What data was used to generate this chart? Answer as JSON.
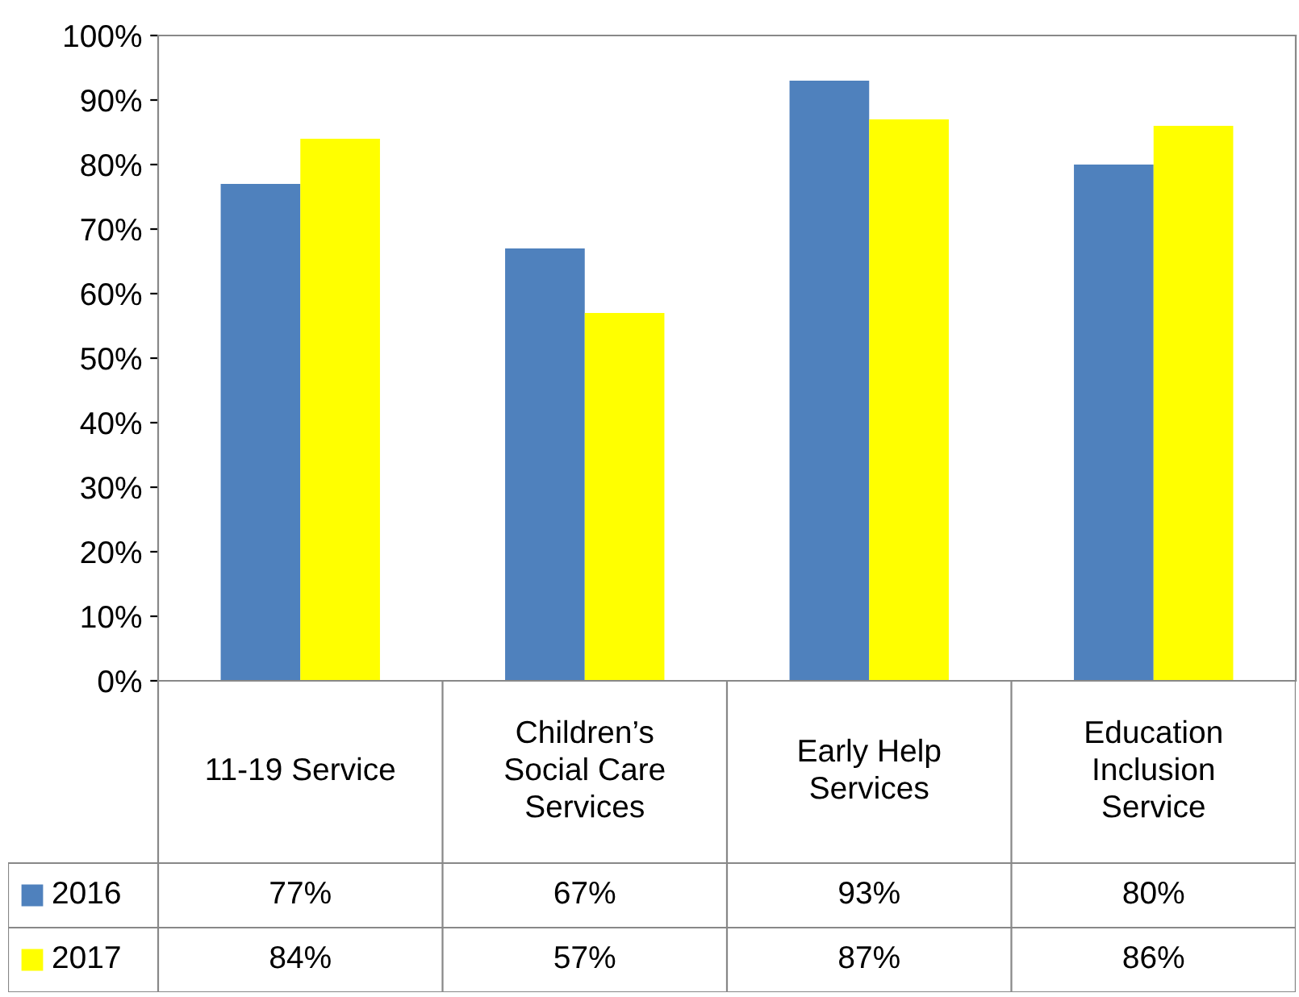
{
  "chart_data": {
    "type": "bar",
    "categories": [
      "11-19 Service",
      "Children’s\nSocial Care\nServices",
      "Early Help\nServices",
      "Education\nInclusion\nService"
    ],
    "series": [
      {
        "name": "2016",
        "color": "#4f81bd",
        "values": [
          77,
          67,
          93,
          80
        ],
        "value_labels": [
          "77%",
          "67%",
          "93%",
          "80%"
        ]
      },
      {
        "name": "2017",
        "color": "#ffff00",
        "values": [
          84,
          57,
          87,
          86
        ],
        "value_labels": [
          "84%",
          "57%",
          "87%",
          "86%"
        ]
      }
    ],
    "ylim": [
      0,
      100
    ],
    "yticks": [
      {
        "value": 0,
        "label": "0%"
      },
      {
        "value": 10,
        "label": "10%"
      },
      {
        "value": 20,
        "label": "20%"
      },
      {
        "value": 30,
        "label": "30%"
      },
      {
        "value": 40,
        "label": "40%"
      },
      {
        "value": 50,
        "label": "50%"
      },
      {
        "value": 60,
        "label": "60%"
      },
      {
        "value": 70,
        "label": "70%"
      },
      {
        "value": 80,
        "label": "80%"
      },
      {
        "value": 90,
        "label": "90%"
      },
      {
        "value": 100,
        "label": "100%"
      }
    ],
    "grid": false,
    "legend": "bottom"
  }
}
